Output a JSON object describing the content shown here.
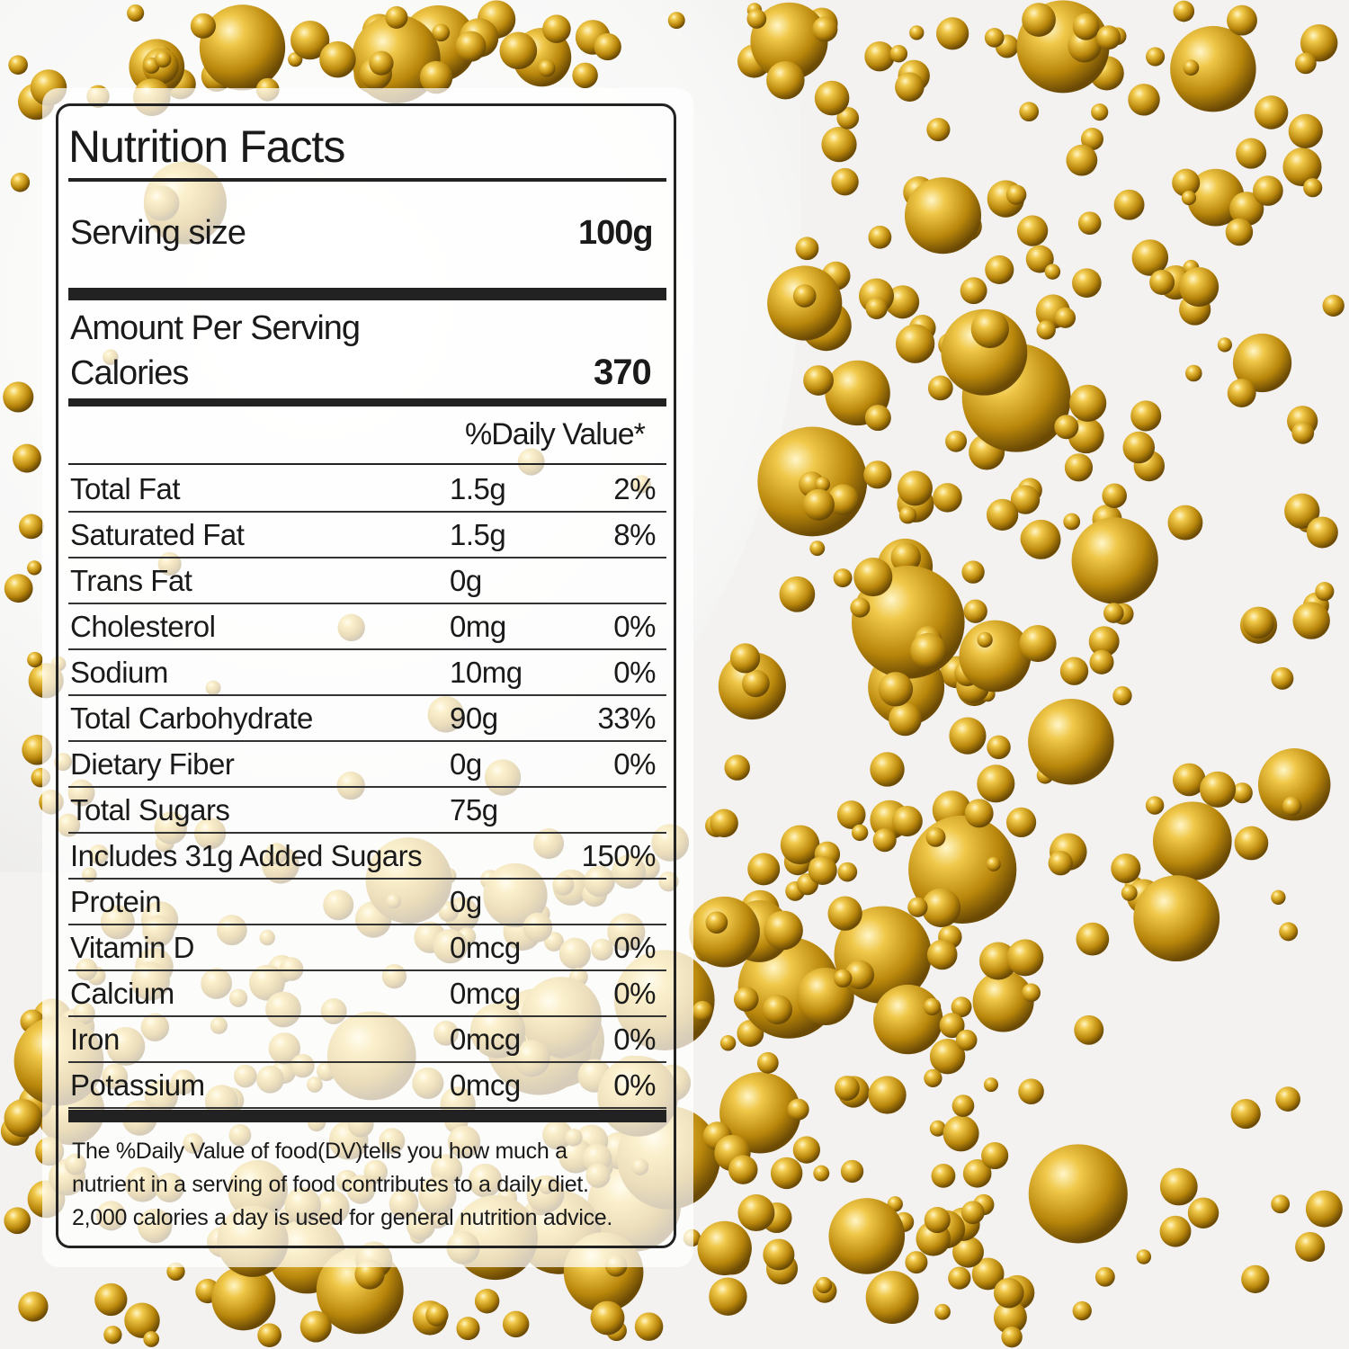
{
  "colors": {
    "gold": "#d4a21c",
    "panel": "#ffffff",
    "text": "#1a1a1a"
  },
  "label": {
    "title": "Nutrition Facts",
    "serving_size_label": "Serving size",
    "serving_size_value": "100g",
    "amount_per_serving": "Amount Per Serving",
    "calories_label": "Calories",
    "calories_value": "370",
    "daily_value_header": "%Daily Value*",
    "rows": [
      {
        "name": "Total Fat",
        "amount": "1.5g",
        "dv": "2%"
      },
      {
        "name": "Saturated Fat",
        "amount": "1.5g",
        "dv": "8%"
      },
      {
        "name": "Trans Fat",
        "amount": "0g",
        "dv": ""
      },
      {
        "name": "Cholesterol",
        "amount": "0mg",
        "dv": "0%"
      },
      {
        "name": "Sodium",
        "amount": "10mg",
        "dv": "0%"
      },
      {
        "name": "Total Carbohydrate",
        "amount": "90g",
        "dv": "33%"
      },
      {
        "name": "Dietary Fiber",
        "amount": "0g",
        "dv": "0%"
      },
      {
        "name": "Total Sugars",
        "amount": "75g",
        "dv": ""
      },
      {
        "name": "Includes 31g Added Sugars",
        "amount": "",
        "dv": "150%"
      },
      {
        "name": "Protein",
        "amount": "0g",
        "dv": ""
      },
      {
        "name": "Vitamin D",
        "amount": "0mcg",
        "dv": "0%"
      },
      {
        "name": "Calcium",
        "amount": "0mcg",
        "dv": "0%"
      },
      {
        "name": "Iron",
        "amount": "0mcg",
        "dv": "0%"
      },
      {
        "name": "Potassium",
        "amount": "0mcg",
        "dv": "0%"
      }
    ],
    "footnote": [
      "The %Daily Value of food(DV)tells you how much a",
      "nutrient in a serving of food contributes to a daily diet.",
      "2,000 calories a day is used for general nutrition advice."
    ]
  }
}
